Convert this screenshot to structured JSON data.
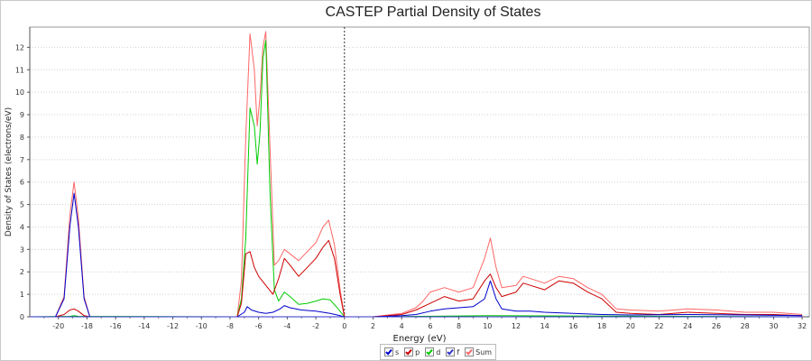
{
  "window": {
    "title": "CASTEP Partial  Density of States"
  },
  "chart_data": {
    "type": "line",
    "title": "CASTEP Partial  Density of States",
    "xlabel": "Energy (eV)",
    "ylabel": "Density of States (electrons/eV)",
    "xlim": [
      -22,
      32.5
    ],
    "ylim": [
      0,
      12.9
    ],
    "xticks": [
      -20,
      -18,
      -16,
      -14,
      -12,
      -10,
      -8,
      -6,
      -4,
      -2,
      0,
      2,
      4,
      6,
      8,
      10,
      12,
      14,
      16,
      18,
      20,
      22,
      24,
      26,
      28,
      30,
      32
    ],
    "yticks": [
      0,
      1,
      2,
      3,
      4,
      5,
      6,
      7,
      8,
      9,
      10,
      11,
      12
    ],
    "grid": true,
    "fermi_line_x": 0,
    "legend_position": "bottom-center",
    "series": [
      {
        "name": "s",
        "color": "#0000cc",
        "x": [
          -22,
          -20.2,
          -19.6,
          -19.2,
          -18.9,
          -18.6,
          -18.2,
          -17.8,
          -7.5,
          -7.0,
          -6.8,
          -6.5,
          -6.0,
          -5.5,
          -5.0,
          -4.5,
          -4.2,
          -3.8,
          -3.0,
          -2.0,
          -1.0,
          -0.3,
          0,
          2,
          4,
          5,
          6,
          7,
          8,
          9,
          9.8,
          10.2,
          10.6,
          11,
          12,
          13,
          14,
          16,
          18,
          20,
          24,
          28,
          32
        ],
        "y": [
          0,
          0,
          0.8,
          4.0,
          5.5,
          4.0,
          0.8,
          0,
          0,
          0.2,
          0.45,
          0.3,
          0.2,
          0.15,
          0.2,
          0.35,
          0.5,
          0.4,
          0.3,
          0.25,
          0.15,
          0.05,
          0,
          0,
          0.05,
          0.1,
          0.25,
          0.35,
          0.4,
          0.45,
          0.8,
          1.6,
          0.8,
          0.35,
          0.25,
          0.25,
          0.2,
          0.15,
          0.1,
          0.08,
          0.1,
          0.08,
          0.05
        ]
      },
      {
        "name": "p",
        "color": "#cc0000",
        "x": [
          -22,
          -20.2,
          -19.6,
          -19.2,
          -18.9,
          -18.6,
          -18.2,
          -17.8,
          -7.5,
          -7.2,
          -6.9,
          -6.6,
          -6.3,
          -6.0,
          -5.5,
          -5.0,
          -4.6,
          -4.2,
          -3.8,
          -3.2,
          -2.6,
          -2.0,
          -1.5,
          -1.1,
          -0.7,
          -0.3,
          0,
          2,
          4,
          5,
          6,
          7,
          8,
          9,
          9.8,
          10.2,
          10.6,
          11,
          12,
          12.5,
          13,
          14,
          15,
          16,
          17,
          18,
          19,
          20,
          22,
          24,
          26,
          28,
          30,
          32
        ],
        "y": [
          0,
          0,
          0.1,
          0.3,
          0.35,
          0.25,
          0.05,
          0,
          0,
          0.6,
          2.8,
          2.9,
          2.2,
          1.8,
          1.4,
          1.0,
          1.7,
          2.6,
          2.3,
          1.8,
          2.2,
          2.6,
          3.1,
          3.4,
          2.6,
          1.0,
          0,
          0,
          0.1,
          0.3,
          0.6,
          0.9,
          0.7,
          0.8,
          1.6,
          1.9,
          1.3,
          0.9,
          1.1,
          1.5,
          1.4,
          1.2,
          1.6,
          1.5,
          1.1,
          0.8,
          0.2,
          0.15,
          0.1,
          0.2,
          0.15,
          0.1,
          0.1,
          0.05
        ]
      },
      {
        "name": "d",
        "color": "#00cc00",
        "x": [
          -22,
          -19.2,
          -18.9,
          -18.6,
          -7.5,
          -7.2,
          -6.9,
          -6.6,
          -6.3,
          -6.1,
          -5.9,
          -5.7,
          -5.5,
          -5.2,
          -4.9,
          -4.6,
          -4.2,
          -3.8,
          -3.2,
          -2.6,
          -2.0,
          -1.5,
          -1.0,
          -0.5,
          0,
          2,
          10,
          10.2,
          32
        ],
        "y": [
          0,
          0.02,
          0.05,
          0.02,
          0,
          0.8,
          3.5,
          9.3,
          8.5,
          6.8,
          8.2,
          11.5,
          12.3,
          5.5,
          1.2,
          0.7,
          1.1,
          0.9,
          0.55,
          0.6,
          0.7,
          0.8,
          0.75,
          0.4,
          0,
          0,
          0.05,
          0.05,
          0
        ]
      },
      {
        "name": "f",
        "color": "#3333cc",
        "x": [
          -22,
          32
        ],
        "y": [
          0,
          0
        ]
      },
      {
        "name": "Sum",
        "color": "#ff6666",
        "x": [
          -22,
          -20.2,
          -19.6,
          -19.2,
          -18.9,
          -18.6,
          -18.2,
          -17.8,
          -7.5,
          -7.2,
          -6.9,
          -6.6,
          -6.3,
          -6.1,
          -5.9,
          -5.7,
          -5.5,
          -5.2,
          -4.9,
          -4.6,
          -4.2,
          -3.8,
          -3.2,
          -2.6,
          -2.0,
          -1.5,
          -1.1,
          -0.7,
          -0.3,
          0,
          2,
          4,
          5,
          5.5,
          6,
          7,
          8,
          9,
          9.8,
          10.2,
          10.6,
          11,
          12,
          12.5,
          13,
          14,
          15,
          16,
          17,
          18,
          19,
          20,
          22,
          24,
          26,
          28,
          30,
          32
        ],
        "y": [
          0,
          0,
          0.9,
          4.5,
          6.0,
          4.4,
          0.9,
          0,
          0,
          1.6,
          8.0,
          12.6,
          11.0,
          8.5,
          9.8,
          12.0,
          12.7,
          7.5,
          2.3,
          2.5,
          3.0,
          2.8,
          2.5,
          2.9,
          3.3,
          4.0,
          4.3,
          3.2,
          1.2,
          0,
          0,
          0.15,
          0.4,
          0.7,
          1.1,
          1.3,
          1.1,
          1.3,
          2.6,
          3.5,
          2.2,
          1.3,
          1.4,
          1.8,
          1.7,
          1.5,
          1.8,
          1.7,
          1.3,
          1.0,
          0.35,
          0.3,
          0.25,
          0.35,
          0.3,
          0.2,
          0.2,
          0.1
        ]
      }
    ]
  }
}
